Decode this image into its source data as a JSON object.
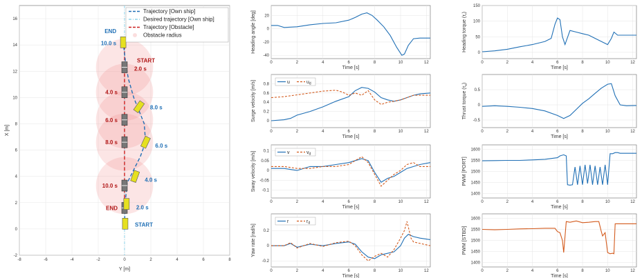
{
  "trajectory_plot": {
    "xlabel": "Y [m]",
    "ylabel": "X [m]",
    "xlim": [
      -8,
      8
    ],
    "ylim": [
      -2,
      17
    ],
    "xticks": [
      -8,
      -6,
      -4,
      -2,
      0,
      2,
      4,
      6,
      8
    ],
    "yticks": [
      -2,
      0,
      2,
      4,
      6,
      8,
      10,
      12,
      14,
      16
    ],
    "legend": [
      {
        "label": "Trajectory [Own ship]",
        "color": "#1f6fb5",
        "style": "dashed"
      },
      {
        "label": "Desired trajectory [Own ship]",
        "color": "#8fd3e8",
        "style": "dashdot"
      },
      {
        "label": "Trajectory [Obstacle]",
        "color": "#cc1f1f",
        "style": "dashed"
      },
      {
        "label": "Obstacle radius",
        "color": "#f4a0a0",
        "style": "fill"
      }
    ],
    "own_ship_path": [
      [
        0,
        0.3
      ],
      [
        0.05,
        2
      ],
      [
        0.2,
        3.5
      ],
      [
        0.6,
        4.3
      ],
      [
        1.2,
        5.5
      ],
      [
        1.6,
        6.6
      ],
      [
        1.5,
        8
      ],
      [
        1.1,
        9
      ],
      [
        0.7,
        10
      ],
      [
        0.3,
        11.4
      ],
      [
        0.1,
        12.5
      ],
      [
        -0.1,
        14.2
      ]
    ],
    "obstacle_path": [
      [
        0,
        1.5
      ],
      [
        0,
        14
      ]
    ],
    "own_ship_poses": [
      {
        "y": 0.05,
        "x": 0.4,
        "label": "START"
      },
      {
        "y": 0.15,
        "x": 1.9,
        "label": "2.0 s"
      },
      {
        "y": 0.8,
        "x": 4.0,
        "label": "4.0 s"
      },
      {
        "y": 1.6,
        "x": 6.6,
        "label": "6.0 s"
      },
      {
        "y": 1.1,
        "x": 9.3,
        "label": "8.0 s"
      },
      {
        "y": -0.1,
        "x": 14.2,
        "label": "10.0 s"
      },
      {
        "y": -0.1,
        "x": 15.0,
        "label": "END"
      }
    ],
    "obstacle_poses": [
      {
        "y": 0,
        "x": 12.3,
        "label": "START",
        "sub": "2.0 s"
      },
      {
        "y": 0,
        "x": 10.4,
        "label": "4.0 s"
      },
      {
        "y": 0,
        "x": 8.3,
        "label": "6.0 s"
      },
      {
        "y": 0,
        "x": 6.6,
        "label": "8.0 s"
      },
      {
        "y": 0,
        "x": 3.3,
        "label": "10.0 s"
      },
      {
        "y": 0,
        "x": 1.6,
        "label": "END"
      }
    ],
    "obstacle_radius": 1.5
  },
  "chart_data": [
    {
      "type": "line",
      "ylabel": "Heading angle [deg]",
      "xlabel": "Time [s]",
      "xlim": [
        0,
        12.3
      ],
      "ylim": [
        -45,
        35
      ],
      "xticks": [
        0,
        2,
        4,
        6,
        8,
        10,
        12
      ],
      "yticks": [
        -40,
        -20,
        0,
        20
      ],
      "series": [
        {
          "color": "#1f6fb5",
          "x": [
            0,
            0.5,
            1,
            2,
            3,
            4,
            5,
            6,
            6.5,
            7,
            7.4,
            7.8,
            8.2,
            8.7,
            9.2,
            9.7,
            10.1,
            10.3,
            10.6,
            11,
            11.5,
            12.3
          ],
          "y": [
            5,
            5,
            2,
            3,
            6,
            8,
            9,
            13,
            17,
            22,
            24,
            20,
            13,
            3,
            -10,
            -28,
            -40,
            -38,
            -25,
            -15,
            -14,
            -14
          ]
        }
      ]
    },
    {
      "type": "line",
      "ylabel": "Surge velocity [m/s]",
      "xlabel": "Time [s]",
      "xlim": [
        0,
        12.3
      ],
      "ylim": [
        -0.15,
        1.0
      ],
      "xticks": [
        0,
        2,
        4,
        6,
        8,
        10,
        12
      ],
      "yticks": [
        0,
        0.2,
        0.4,
        0.6,
        0.8
      ],
      "legend": [
        {
          "label": "u",
          "color": "#1f6fb5",
          "style": "solid"
        },
        {
          "label": "u",
          "sub": "d",
          "color": "#d35a1c",
          "style": "dashed"
        }
      ],
      "series": [
        {
          "name": "u",
          "color": "#1f6fb5",
          "style": "solid",
          "x": [
            0,
            1,
            1.5,
            2,
            3,
            4,
            5,
            6,
            6.5,
            7,
            7.5,
            8,
            8.5,
            9,
            9.5,
            10,
            10.5,
            11,
            11.5,
            12.3
          ],
          "y": [
            0,
            0.02,
            0.05,
            0.12,
            0.2,
            0.3,
            0.42,
            0.52,
            0.65,
            0.72,
            0.7,
            0.62,
            0.5,
            0.45,
            0.42,
            0.45,
            0.5,
            0.55,
            0.58,
            0.6
          ]
        },
        {
          "name": "ud",
          "color": "#d35a1c",
          "style": "dashed",
          "x": [
            0,
            1,
            2,
            3,
            4,
            5,
            5.5,
            6,
            6.5,
            7,
            7.5,
            8,
            8.5,
            9,
            9.5,
            10,
            10.5,
            11,
            12.3
          ],
          "y": [
            0.5,
            0.52,
            0.56,
            0.6,
            0.64,
            0.66,
            0.62,
            0.55,
            0.6,
            0.55,
            0.65,
            0.45,
            0.35,
            0.4,
            0.42,
            0.45,
            0.5,
            0.55,
            0.55
          ]
        }
      ]
    },
    {
      "type": "line",
      "ylabel": "Sway velocity [m/s]",
      "xlabel": "Time [s]",
      "xlim": [
        0,
        12.3
      ],
      "ylim": [
        -0.14,
        0.13
      ],
      "xticks": [
        0,
        2,
        4,
        6,
        8,
        10,
        12
      ],
      "yticks": [
        -0.1,
        -0.05,
        0,
        0.05,
        0.1
      ],
      "legend": [
        {
          "label": "v",
          "color": "#1f6fb5",
          "style": "solid"
        },
        {
          "label": "v",
          "sub": "d",
          "color": "#d35a1c",
          "style": "dashed"
        }
      ],
      "series": [
        {
          "name": "v",
          "color": "#1f6fb5",
          "style": "solid",
          "x": [
            0,
            1,
            2,
            3,
            4,
            5,
            6,
            6.5,
            7,
            7.5,
            8,
            8.5,
            9,
            9.5,
            10,
            10.5,
            11,
            11.5,
            12.3
          ],
          "y": [
            0.01,
            0.01,
            0.0,
            0.02,
            0.02,
            0.03,
            0.04,
            0.05,
            0.06,
            0.05,
            -0.01,
            -0.06,
            -0.04,
            -0.03,
            -0.01,
            0.01,
            0.02,
            0.03,
            0.04
          ]
        },
        {
          "name": "vd",
          "color": "#d35a1c",
          "style": "dashed",
          "x": [
            0,
            1,
            2,
            3,
            4,
            5,
            6,
            6.5,
            7,
            7.5,
            8,
            8.5,
            9,
            9.5,
            10,
            10.5,
            11,
            11.5,
            12.3
          ],
          "y": [
            0.02,
            0.02,
            0.01,
            0.01,
            0.02,
            0.02,
            0.03,
            0.05,
            0.07,
            0.04,
            -0.02,
            -0.08,
            -0.05,
            -0.02,
            0.0,
            0.03,
            0.04,
            0.02,
            0.02
          ]
        }
      ]
    },
    {
      "type": "line",
      "ylabel": "Yaw rate [rad/s]",
      "xlabel": "Time [s]",
      "xlim": [
        0,
        12.3
      ],
      "ylim": [
        -0.28,
        0.42
      ],
      "xticks": [
        0,
        2,
        4,
        6,
        8,
        10,
        12
      ],
      "yticks": [
        -0.2,
        0,
        0.2
      ],
      "legend": [
        {
          "label": "r",
          "color": "#1f6fb5",
          "style": "solid"
        },
        {
          "label": "r",
          "sub": "d",
          "color": "#d35a1c",
          "style": "dashed"
        }
      ],
      "series": [
        {
          "name": "r",
          "color": "#1f6fb5",
          "style": "solid",
          "x": [
            0,
            1,
            1.5,
            2,
            3,
            4,
            5,
            6,
            6.5,
            7,
            7.5,
            8,
            8.5,
            9,
            9.5,
            10,
            10.3,
            10.6,
            11,
            11.5,
            12.3
          ],
          "y": [
            0,
            0,
            0.03,
            -0.02,
            0.02,
            0,
            0.03,
            0.05,
            0.02,
            -0.08,
            -0.15,
            -0.17,
            -0.12,
            -0.1,
            -0.08,
            0.0,
            0.1,
            0.15,
            0.12,
            0.1,
            0.08
          ]
        },
        {
          "name": "rd",
          "color": "#d35a1c",
          "style": "dashed",
          "x": [
            0,
            1,
            1.5,
            2,
            3,
            4,
            5,
            6,
            6.5,
            7,
            7.5,
            8,
            8.5,
            9,
            9.5,
            10,
            10.3,
            10.5,
            10.8,
            11,
            12.3
          ],
          "y": [
            0,
            0,
            0.04,
            -0.03,
            0.03,
            -0.01,
            0.04,
            0.06,
            0.0,
            -0.12,
            -0.2,
            -0.14,
            -0.1,
            -0.15,
            -0.05,
            0.1,
            0.2,
            0.32,
            0.1,
            0.05,
            0.0
          ]
        }
      ]
    },
    {
      "type": "line",
      "ylabel": "Heading torque (τ_r)",
      "ylabel_main": "Heading torque (",
      "ylabel_sym": "τ",
      "ylabel_sub": "r",
      "ylabel_tail": ")",
      "xlabel": "Time [s]",
      "xlim": [
        0,
        12.3
      ],
      "ylim": [
        -20,
        150
      ],
      "xticks": [
        0,
        2,
        4,
        6,
        8,
        10,
        12
      ],
      "yticks": [
        0,
        50,
        100,
        150
      ],
      "series": [
        {
          "color": "#1f6fb5",
          "x": [
            0,
            1,
            2,
            3,
            4,
            5,
            5.5,
            5.8,
            6,
            6.2,
            6.4,
            6.6,
            7,
            7.5,
            8,
            8.5,
            9,
            9.5,
            10,
            10.3,
            10.5,
            10.8,
            11,
            12.3
          ],
          "y": [
            2,
            5,
            10,
            18,
            25,
            35,
            45,
            90,
            110,
            105,
            50,
            25,
            70,
            65,
            60,
            55,
            45,
            35,
            25,
            45,
            65,
            55,
            55,
            55
          ]
        }
      ]
    },
    {
      "type": "line",
      "ylabel": "Thrust torque (τ_x)",
      "ylabel_main": "Thrust torque (",
      "ylabel_sym": "τ",
      "ylabel_sub": "x",
      "ylabel_tail": ")",
      "xlabel": "Time [s]",
      "xlim": [
        0,
        12.3
      ],
      "ylim": [
        -0.75,
        1.0
      ],
      "xticks": [
        0,
        2,
        4,
        6,
        8,
        10,
        12
      ],
      "yticks": [
        -0.5,
        0,
        0.5
      ],
      "series": [
        {
          "color": "#1f6fb5",
          "x": [
            0,
            1,
            2,
            3,
            4,
            5,
            6,
            6.5,
            7,
            7.5,
            8,
            8.5,
            9,
            9.5,
            10,
            10.3,
            10.6,
            11,
            11.5,
            12.3
          ],
          "y": [
            -0.05,
            -0.03,
            -0.05,
            -0.08,
            -0.12,
            -0.2,
            -0.35,
            -0.45,
            -0.35,
            -0.15,
            0.05,
            0.2,
            0.38,
            0.55,
            0.68,
            0.7,
            0.3,
            0.0,
            -0.03,
            -0.02
          ]
        }
      ]
    },
    {
      "type": "line",
      "ylabel": "PWM [PORT]",
      "xlabel": "Time [s]",
      "xlim": [
        0,
        12.3
      ],
      "ylim": [
        1380,
        1620
      ],
      "xticks": [
        0,
        2,
        4,
        6,
        8,
        10,
        12
      ],
      "yticks": [
        1400,
        1450,
        1500,
        1550,
        1600
      ],
      "series": [
        {
          "color": "#1f6fb5",
          "x": [
            0,
            1,
            2,
            3,
            4,
            5,
            6,
            6.2,
            6.5,
            6.7,
            6.8,
            7,
            7.2,
            7.4,
            7.6,
            7.8,
            8,
            8.2,
            8.4,
            8.6,
            8.8,
            9,
            9.2,
            9.4,
            9.6,
            9.8,
            10,
            10.2,
            10.4,
            10.6,
            10.8,
            11,
            12.3
          ],
          "y": [
            1548,
            1549,
            1550,
            1550,
            1552,
            1555,
            1562,
            1570,
            1575,
            1570,
            1440,
            1438,
            1440,
            1520,
            1440,
            1525,
            1440,
            1530,
            1445,
            1530,
            1440,
            1525,
            1440,
            1520,
            1440,
            1530,
            1440,
            1580,
            1580,
            1585,
            1585,
            1582,
            1582
          ]
        }
      ]
    },
    {
      "type": "line",
      "ylabel": "PWM [STBD]",
      "xlabel": "Time [s]",
      "xlim": [
        0,
        12.3
      ],
      "ylim": [
        1380,
        1620
      ],
      "xticks": [
        0,
        2,
        4,
        6,
        8,
        10,
        12
      ],
      "yticks": [
        1400,
        1450,
        1500,
        1550,
        1600
      ],
      "series": [
        {
          "color": "#d35a1c",
          "x": [
            0,
            1,
            2,
            3,
            4,
            5,
            5.8,
            6,
            6.2,
            6.4,
            6.5,
            6.7,
            7,
            7.5,
            8,
            8.5,
            9,
            9.3,
            9.5,
            9.6,
            9.8,
            10,
            10.2,
            10.4,
            10.5,
            10.6,
            11,
            12.3
          ],
          "y": [
            1550,
            1548,
            1550,
            1552,
            1553,
            1555,
            1555,
            1540,
            1535,
            1500,
            1445,
            1585,
            1582,
            1588,
            1580,
            1582,
            1585,
            1585,
            1540,
            1520,
            1535,
            1445,
            1440,
            1442,
            1440,
            1575,
            1575,
            1575
          ]
        }
      ]
    }
  ]
}
